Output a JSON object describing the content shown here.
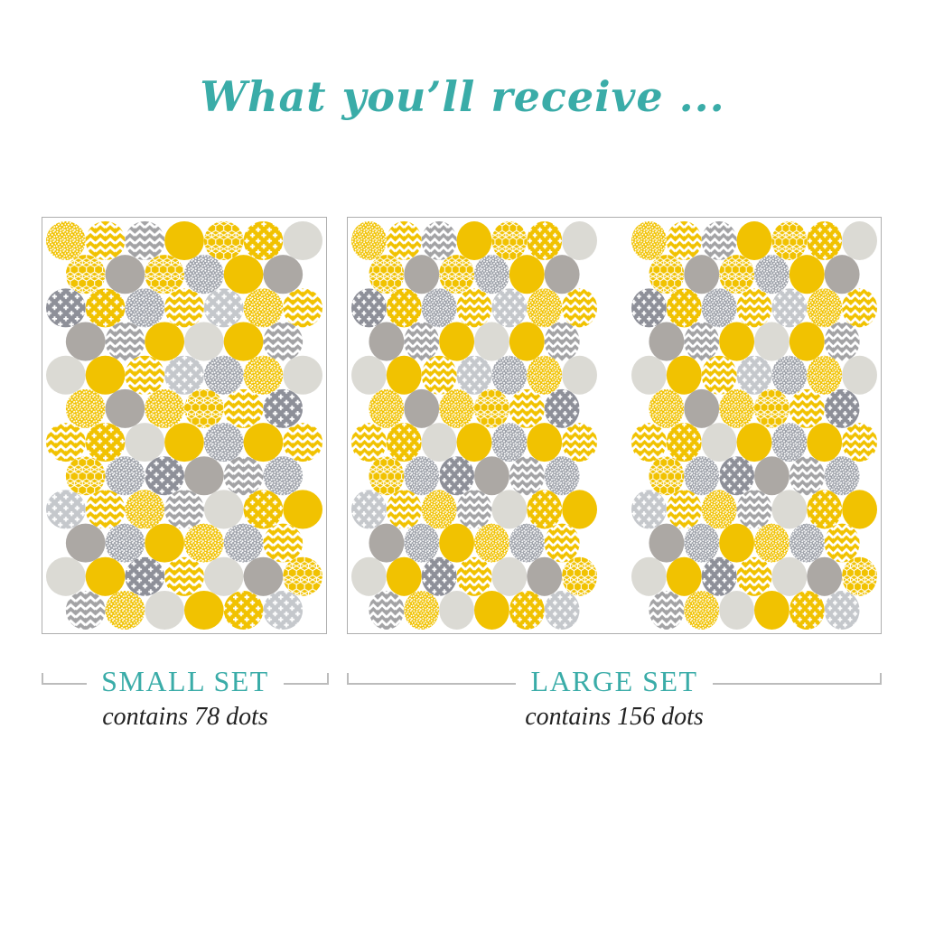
{
  "title": "What you’ll receive ...",
  "palette": {
    "teal": "#3AACA8",
    "yellow": "#F1C201",
    "gray": "#ACA8A4",
    "lightgray": "#DBDAD4",
    "gray_plus": "#8E9099",
    "silver_plus": "#C5C8CC",
    "gray_speckle": "#9DA1A9",
    "gray_chevron": "#A3A3A5",
    "pattern_white": "#FFFFFF",
    "panel_border": "#AEAEAE",
    "bracket": "#BCBCBC",
    "text_dark": "#222222"
  },
  "small_set": {
    "label": "SMALL SET",
    "contains": "contains 78 dots",
    "sheets": 1,
    "dot_count": 78
  },
  "large_set": {
    "label": "LARGE SET",
    "contains": "contains 156 dots",
    "sheets": 2,
    "dot_count": 156
  },
  "sheet": {
    "rows": [
      [
        "yellow-speckle",
        "yellow-chevron",
        "gray-chevron",
        "yellow-solid",
        "yellow-geo",
        "yellow-plus",
        "lightgray-solid"
      ],
      [
        "yellow-geo",
        "gray-solid",
        "yellow-geo",
        "gray-speckle",
        "yellow-solid",
        "gray-solid"
      ],
      [
        "gray-plus",
        "yellow-plus",
        "gray-speckle",
        "yellow-chevron",
        "silver-plus",
        "yellow-speckle",
        "yellow-chevron"
      ],
      [
        "gray-solid",
        "gray-chevron",
        "yellow-solid",
        "lightgray-solid",
        "yellow-solid",
        "gray-chevron"
      ],
      [
        "lightgray-solid",
        "yellow-solid",
        "yellow-chevron",
        "silver-plus",
        "gray-speckle",
        "yellow-speckle",
        "lightgray-solid"
      ],
      [
        "yellow-speckle",
        "gray-solid",
        "yellow-speckle",
        "yellow-geo",
        "yellow-chevron",
        "gray-plus"
      ],
      [
        "yellow-chevron",
        "yellow-plus",
        "lightgray-solid",
        "yellow-solid",
        "gray-speckle",
        "yellow-solid",
        "yellow-chevron"
      ],
      [
        "yellow-geo",
        "gray-speckle",
        "gray-plus",
        "gray-solid",
        "gray-chevron",
        "gray-speckle"
      ],
      [
        "silver-plus",
        "yellow-chevron",
        "yellow-speckle",
        "gray-chevron",
        "lightgray-solid",
        "yellow-plus",
        "yellow-solid"
      ],
      [
        "gray-solid",
        "gray-speckle",
        "yellow-solid",
        "yellow-speckle",
        "gray-speckle",
        "yellow-chevron"
      ],
      [
        "lightgray-solid",
        "yellow-solid",
        "gray-plus",
        "yellow-chevron",
        "lightgray-solid",
        "gray-solid",
        "yellow-geo"
      ],
      [
        "gray-chevron",
        "yellow-speckle",
        "lightgray-solid",
        "yellow-solid",
        "yellow-plus",
        "silver-plus"
      ]
    ]
  }
}
